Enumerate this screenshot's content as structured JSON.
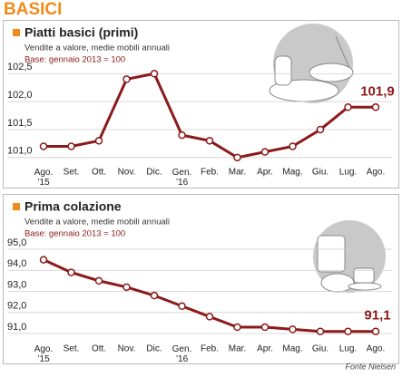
{
  "header": {
    "title": "BASICI"
  },
  "chart_data": [
    {
      "type": "line",
      "title": "Piatti basici (primi)",
      "subtitle": "Vendite a valore, medie mobili annuali",
      "note": "Base: gennaio 2013 = 100",
      "categories": [
        "Ago.\n’15",
        "Set.",
        "Ott.",
        "Nov.",
        "Dic.",
        "Gen.\n’16",
        "Feb.",
        "Mar.",
        "Apr.",
        "Mag.",
        "Giu.",
        "Lug.",
        "Ago."
      ],
      "values": [
        101.2,
        101.2,
        101.3,
        102.4,
        102.5,
        101.4,
        101.3,
        101.0,
        101.1,
        101.2,
        101.5,
        101.9,
        101.9
      ],
      "value_labels": [
        null,
        null,
        null,
        null,
        null,
        null,
        null,
        null,
        null,
        null,
        null,
        null,
        "101,9"
      ],
      "color": "#8b1a1a",
      "ylim": [
        100.9,
        102.65
      ],
      "yticks": [
        {
          "value": 101.0,
          "label": "101,0"
        },
        {
          "value": 101.5,
          "label": "101,5"
        },
        {
          "value": 102.0,
          "label": "102,0"
        },
        {
          "value": 102.5,
          "label": "102,5"
        }
      ],
      "grid": true
    },
    {
      "type": "line",
      "title": "Prima colazione",
      "subtitle": "Vendite a valore, medie mobili annuali",
      "note": "Base: gennaio 2013 = 100",
      "categories": [
        "Ago.\n’15",
        "Set.",
        "Ott.",
        "Nov.",
        "Dic.",
        "Gen.\n’16",
        "Feb.",
        "Mar.",
        "Apr.",
        "Mag.",
        "Giu.",
        "Lug.",
        "Ago."
      ],
      "values": [
        94.5,
        93.9,
        93.5,
        93.2,
        92.8,
        92.3,
        91.8,
        91.3,
        91.3,
        91.2,
        91.1,
        91.1,
        91.1
      ],
      "value_labels": [
        null,
        null,
        null,
        null,
        null,
        null,
        null,
        null,
        null,
        null,
        null,
        null,
        "91,1"
      ],
      "color": "#8b1a1a",
      "ylim": [
        90.7,
        95.3
      ],
      "yticks": [
        {
          "value": 91.0,
          "label": "91,0"
        },
        {
          "value": 92.0,
          "label": "92,0"
        },
        {
          "value": 93.0,
          "label": "93,0"
        },
        {
          "value": 94.0,
          "label": "94,0"
        },
        {
          "value": 95.0,
          "label": "95,0"
        }
      ],
      "grid": true
    }
  ],
  "source": "Fonte Nielsen"
}
